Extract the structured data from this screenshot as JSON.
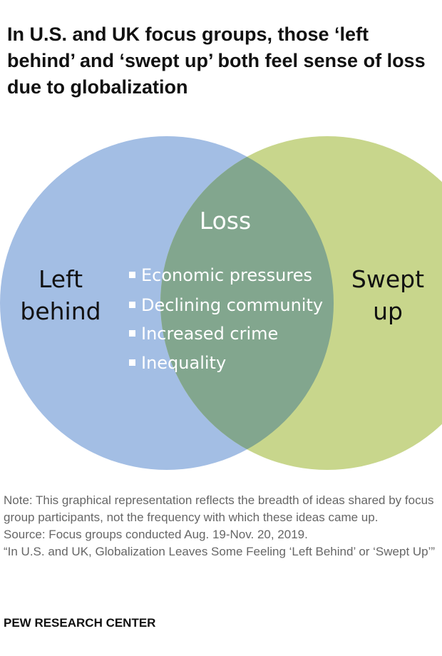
{
  "title": "In U.S. and UK focus groups, those ‘left behind’ and ‘swept up’ both feel sense of loss due to globalization",
  "venn": {
    "left": {
      "line1": "Left",
      "line2": "behind",
      "color": "#a3bee4"
    },
    "right": {
      "line1": "Swept",
      "line2": "up",
      "color": "#c8d68c"
    },
    "overlap": {
      "label": "Loss",
      "color": "#82a68e",
      "items": [
        "Economic pressures",
        "Declining community",
        "Increased crime",
        "Inequality"
      ]
    }
  },
  "notes": {
    "note": "Note: This graphical representation reflects the breadth of ideas shared by focus group participants, not the frequency with which these ideas came up.",
    "source": "Source: Focus groups conducted Aug. 19-Nov. 20, 2019.",
    "report": "“In U.S. and UK, Globalization Leaves Some Feeling ‘Left Behind’ or ‘Swept Up’”"
  },
  "brand": "PEW RESEARCH CENTER"
}
